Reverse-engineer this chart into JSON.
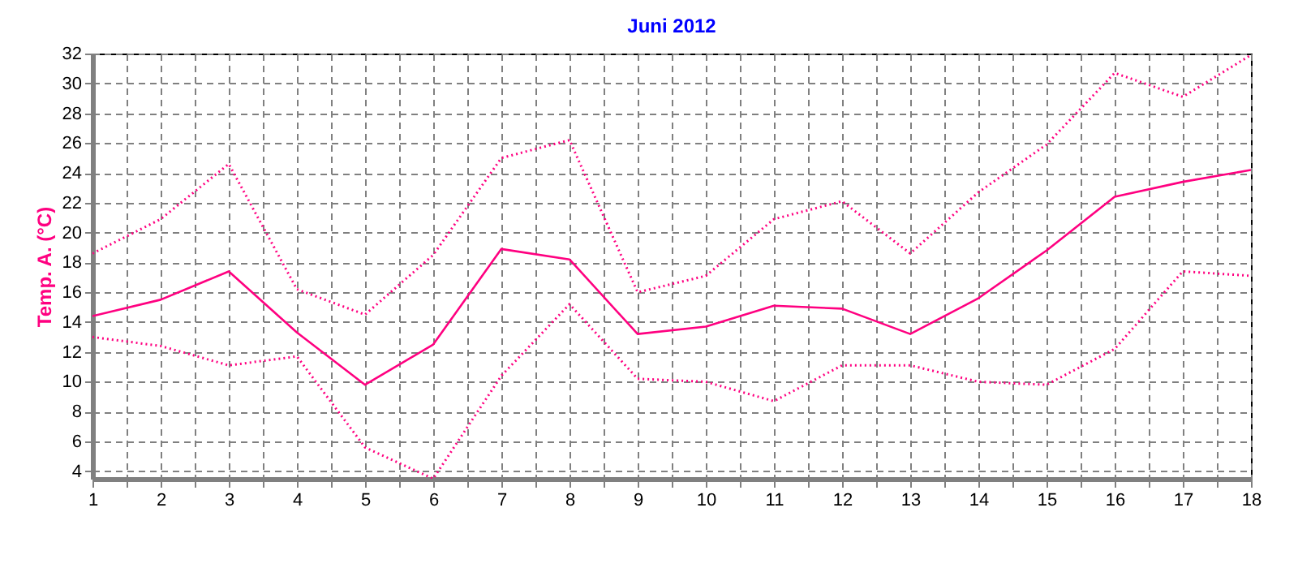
{
  "chart_data": {
    "type": "line",
    "title": "Juni 2012",
    "ylabel": "Temp. A. (°C)",
    "x": [
      1,
      2,
      3,
      4,
      5,
      6,
      7,
      8,
      9,
      10,
      11,
      12,
      13,
      14,
      15,
      16,
      17,
      18
    ],
    "xlim": [
      1,
      18
    ],
    "xticks": [
      1,
      {
        "value": 1.5,
        "label": null
      },
      2,
      {
        "value": 2.5,
        "label": null
      },
      3,
      {
        "value": 3.5,
        "label": null
      },
      4,
      {
        "value": 4.5,
        "label": null
      },
      5,
      {
        "value": 5.5,
        "label": null
      },
      6,
      {
        "value": 6.5,
        "label": null
      },
      7,
      {
        "value": 7.5,
        "label": null
      },
      8,
      {
        "value": 8.5,
        "label": null
      },
      9,
      {
        "value": 9.5,
        "label": null
      },
      10,
      {
        "value": 10.5,
        "label": null
      },
      11,
      {
        "value": 11.5,
        "label": null
      },
      12,
      {
        "value": 12.5,
        "label": null
      },
      13,
      {
        "value": 13.5,
        "label": null
      },
      14,
      {
        "value": 14.5,
        "label": null
      },
      15,
      {
        "value": 15.5,
        "label": null
      },
      16,
      {
        "value": 16.5,
        "label": null
      },
      17,
      {
        "value": 17.5,
        "label": null
      },
      18
    ],
    "ylim": [
      3.5,
      32
    ],
    "yticks": [
      4,
      6,
      8,
      10,
      12,
      14,
      16,
      18,
      20,
      22,
      24,
      26,
      28,
      30,
      32
    ],
    "grid": true,
    "marker": "none",
    "series": [
      {
        "color": "#ff0080",
        "line_style": "solid",
        "values": [
          14.4,
          15.5,
          17.4,
          13.3,
          9.8,
          12.5,
          18.9,
          18.2,
          13.2,
          13.7,
          15.1,
          14.9,
          13.2,
          15.6,
          18.8,
          22.4,
          23.4,
          24.2
        ]
      },
      {
        "color": "#ff0080",
        "line_style": "dotted",
        "values": [
          18.6,
          20.9,
          24.6,
          16.2,
          14.5,
          18.5,
          25.0,
          26.2,
          16.0,
          17.1,
          20.9,
          22.1,
          18.6,
          22.7,
          25.9,
          30.7,
          29.1,
          31.9
        ]
      },
      {
        "color": "#ff0080",
        "line_style": "dotted",
        "values": [
          13.0,
          12.4,
          11.1,
          11.7,
          5.6,
          3.5,
          10.4,
          15.2,
          10.2,
          10.0,
          8.7,
          11.1,
          11.1,
          10.0,
          9.8,
          12.2,
          17.4,
          17.1
        ]
      }
    ]
  }
}
